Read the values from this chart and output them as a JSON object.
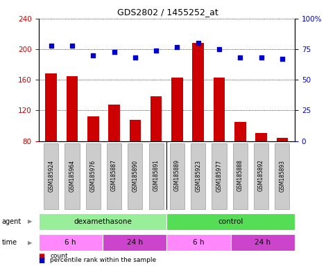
{
  "title": "GDS2802 / 1455252_at",
  "samples": [
    "GSM185924",
    "GSM185964",
    "GSM185976",
    "GSM185887",
    "GSM185890",
    "GSM185891",
    "GSM185889",
    "GSM185923",
    "GSM185977",
    "GSM185888",
    "GSM185892",
    "GSM185893"
  ],
  "bar_values": [
    168,
    165,
    112,
    128,
    108,
    138,
    163,
    208,
    163,
    105,
    90,
    84
  ],
  "percentile_values": [
    78,
    78,
    70,
    73,
    68,
    74,
    77,
    80,
    75,
    68,
    68,
    67
  ],
  "ylim_left": [
    80,
    240
  ],
  "ylim_right": [
    0,
    100
  ],
  "yticks_left": [
    80,
    120,
    160,
    200,
    240
  ],
  "yticks_right": [
    0,
    25,
    50,
    75,
    100
  ],
  "bar_color": "#cc0000",
  "dot_color": "#0000cc",
  "grid_color": "#000000",
  "agent_color_dexa": "#99ee99",
  "agent_color_ctrl": "#55dd55",
  "time_color_light": "#ff88ff",
  "time_color_dark": "#cc44cc",
  "agent_groups": [
    {
      "label": "dexamethasone",
      "start": 0,
      "end": 6,
      "color": "#99ee99"
    },
    {
      "label": "control",
      "start": 6,
      "end": 12,
      "color": "#55dd55"
    }
  ],
  "time_groups": [
    {
      "label": "6 h",
      "start": 0,
      "end": 3,
      "color": "#ff88ff"
    },
    {
      "label": "24 h",
      "start": 3,
      "end": 6,
      "color": "#cc44cc"
    },
    {
      "label": "6 h",
      "start": 6,
      "end": 9,
      "color": "#ff88ff"
    },
    {
      "label": "24 h",
      "start": 9,
      "end": 12,
      "color": "#cc44cc"
    }
  ],
  "tick_label_bg": "#cccccc",
  "legend_items": [
    {
      "color": "#cc0000",
      "label": "count"
    },
    {
      "color": "#0000cc",
      "label": "percentile rank within the sample"
    }
  ],
  "fig_bg": "#ffffff"
}
